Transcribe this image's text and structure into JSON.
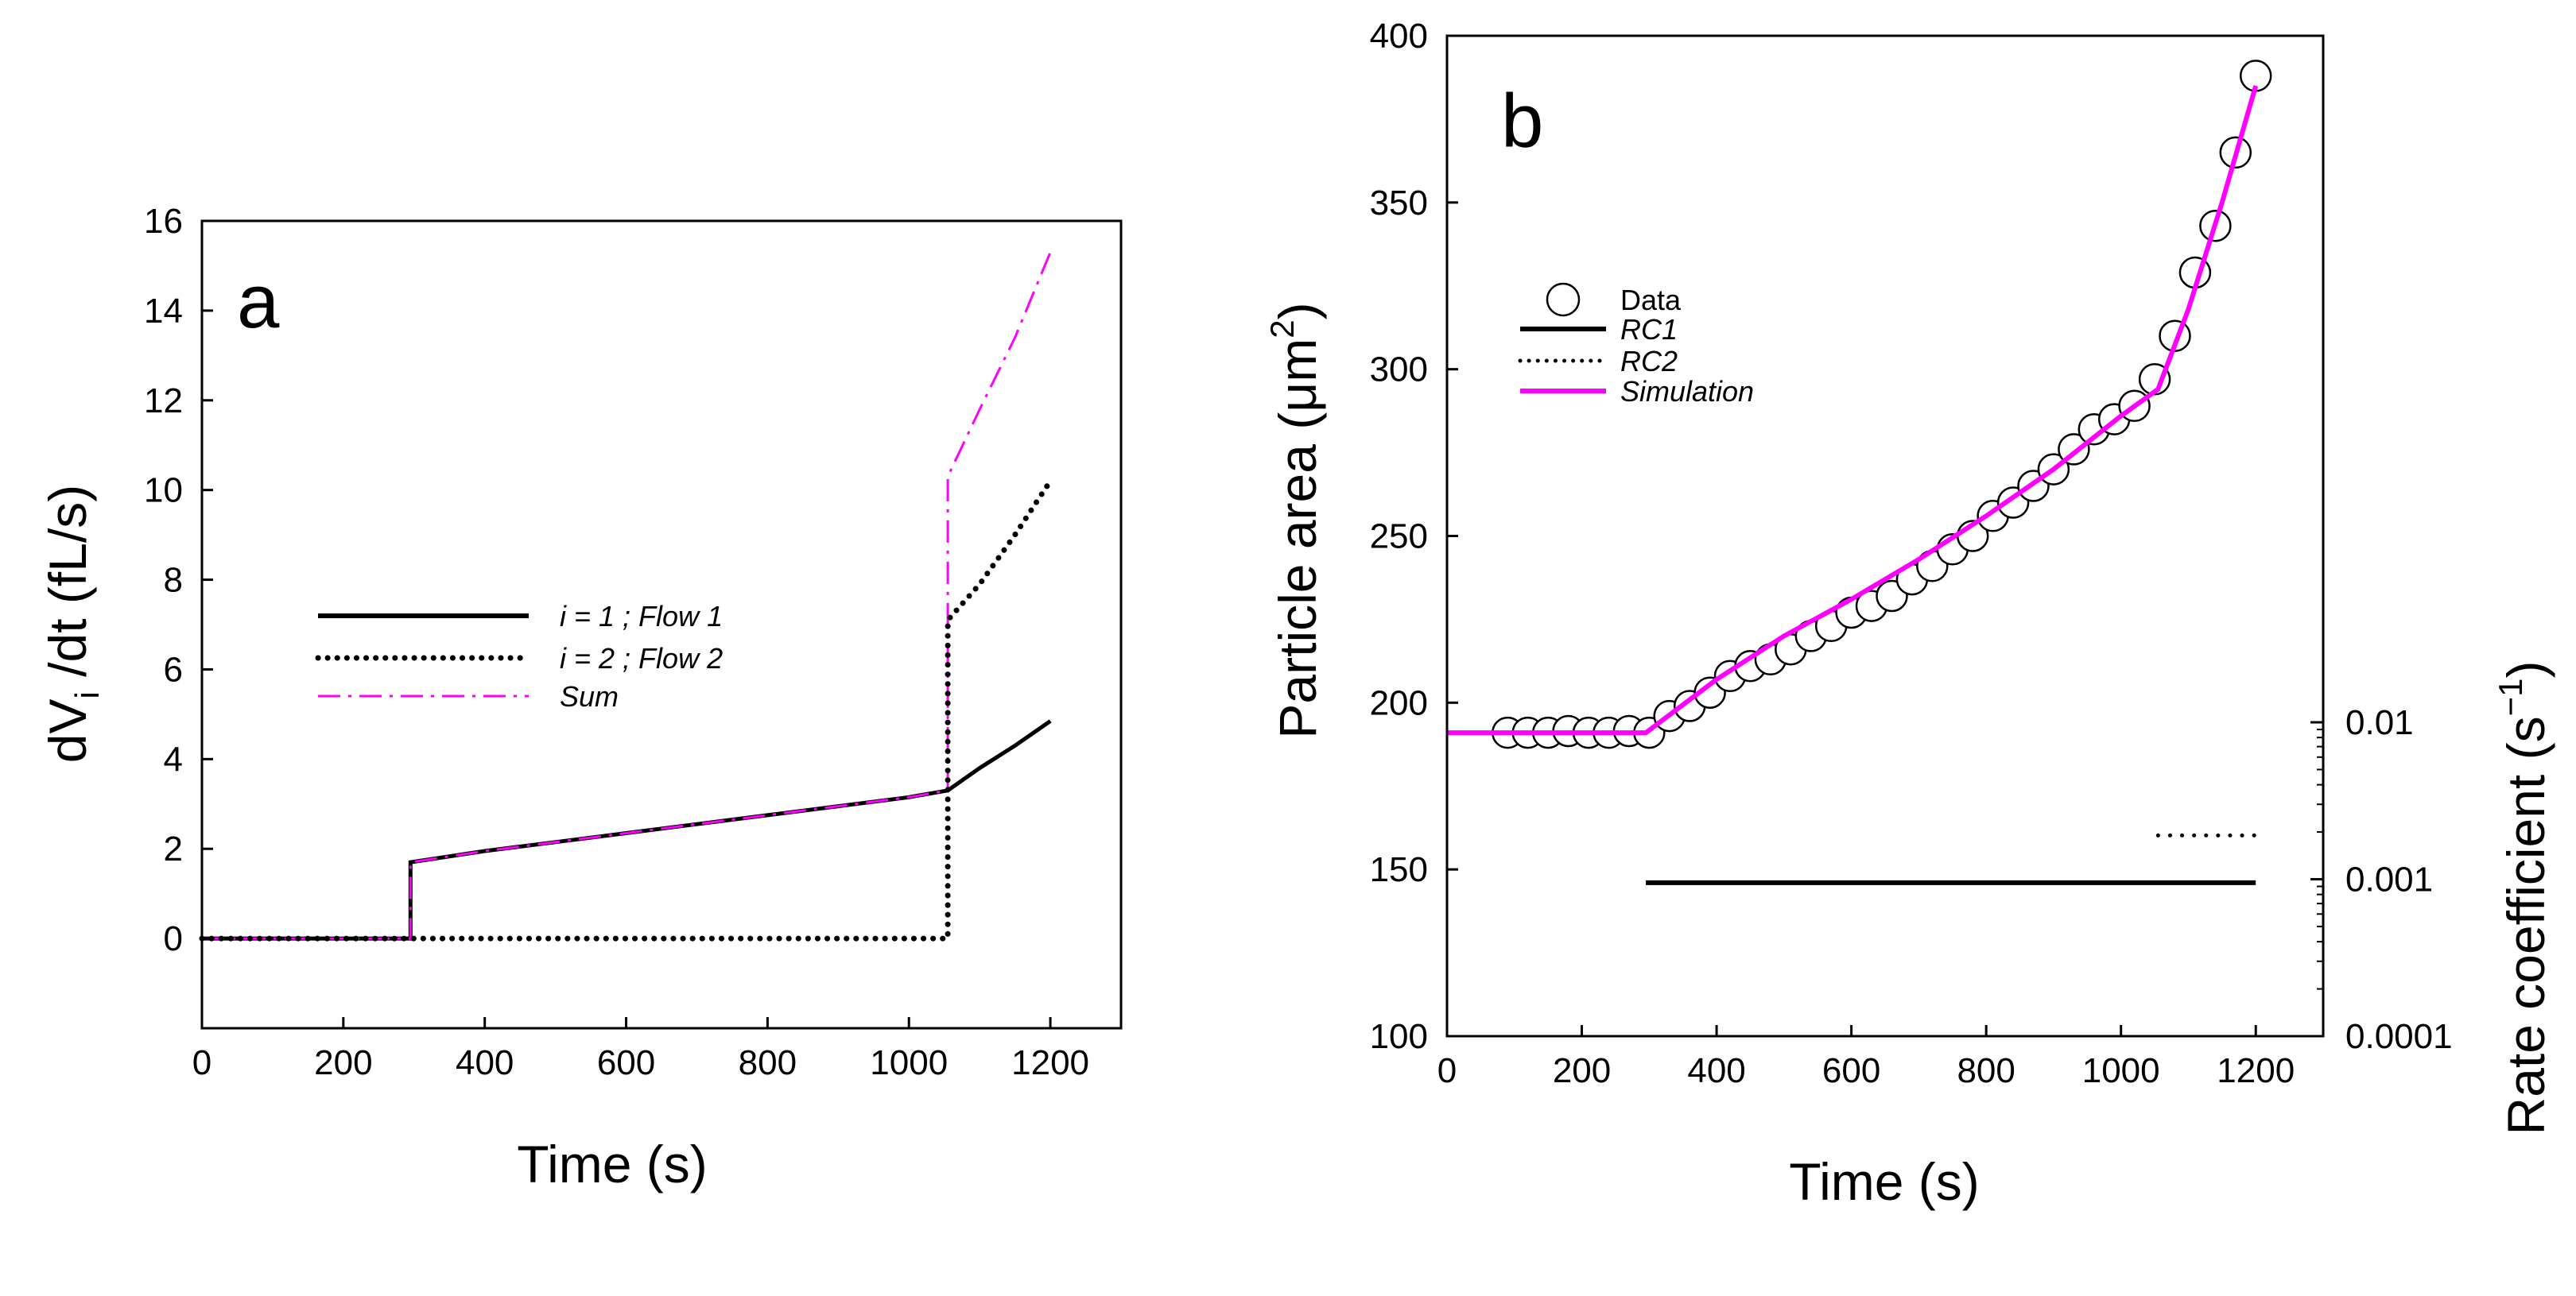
{
  "chart_data": [
    {
      "panel": "a",
      "type": "line",
      "xlabel": "Time (s)",
      "ylabel": {
        "base": "dV",
        "sub": "i",
        "rest": " /dt (fL/s)"
      },
      "xlim": [
        0,
        1300
      ],
      "ylim": [
        -2,
        16
      ],
      "xticks": [
        0,
        200,
        400,
        600,
        800,
        1000,
        1200
      ],
      "yticks": [
        0,
        2,
        4,
        6,
        8,
        10,
        12,
        14,
        16
      ],
      "series": [
        {
          "name": "i = 1 ; Flow 1",
          "color": "#000000",
          "style": "solid",
          "x": [
            0,
            295,
            295,
            400,
            500,
            600,
            700,
            800,
            900,
            1000,
            1055,
            1100,
            1150,
            1200
          ],
          "y": [
            0,
            0,
            1.7,
            1.95,
            2.15,
            2.35,
            2.55,
            2.75,
            2.95,
            3.15,
            3.3,
            3.8,
            4.3,
            4.85
          ]
        },
        {
          "name": "i = 2 ; Flow 2",
          "color": "#000000",
          "style": "dotted",
          "x": [
            0,
            1055,
            1055,
            1100,
            1150,
            1200
          ],
          "y": [
            0,
            0,
            7.1,
            7.9,
            9.0,
            10.2
          ]
        },
        {
          "name": "Sum",
          "color": "#ff00ff",
          "style": "dashdot",
          "x": [
            0,
            295,
            295,
            400,
            500,
            600,
            700,
            800,
            900,
            1000,
            1055,
            1055,
            1100,
            1150,
            1200
          ],
          "y": [
            0,
            0,
            1.7,
            1.95,
            2.15,
            2.35,
            2.55,
            2.75,
            2.95,
            3.15,
            3.3,
            10.3,
            11.8,
            13.4,
            15.3
          ]
        }
      ]
    },
    {
      "panel": "b",
      "type": "scatter+line",
      "xlabel": "Time (s)",
      "ylabel": {
        "base": "Particle area (",
        "unit": "μm",
        "sup": "2",
        "rest": ")"
      },
      "y2label": {
        "base": "Rate coefficient (s",
        "sup": "−1",
        "rest": ")"
      },
      "xlim": [
        0,
        1300
      ],
      "ylim": [
        100,
        400
      ],
      "y2lim_log": [
        0.0001,
        0.01
      ],
      "xticks": [
        0,
        200,
        400,
        600,
        800,
        1000,
        1200
      ],
      "yticks": [
        100,
        150,
        200,
        250,
        300,
        350,
        400
      ],
      "y2ticks": [
        "0.0001",
        "0.001",
        "0.01"
      ],
      "y2tick_values": [
        0.0001,
        0.001,
        0.01
      ],
      "series": [
        {
          "name": "Data",
          "marker": "open-circle",
          "x": [
            90,
            120,
            150,
            180,
            210,
            240,
            270,
            300,
            330,
            360,
            390,
            420,
            450,
            480,
            510,
            540,
            570,
            600,
            630,
            660,
            690,
            720,
            750,
            780,
            810,
            840,
            870,
            900,
            930,
            960,
            990,
            1020,
            1050,
            1080,
            1110,
            1140,
            1170,
            1200
          ],
          "y": [
            191,
            191,
            191,
            191.5,
            191,
            191,
            191.5,
            191,
            196,
            199,
            203,
            208,
            211,
            213,
            216,
            220,
            223,
            227,
            229,
            232,
            237,
            241,
            246,
            250,
            256,
            260,
            265,
            270,
            276,
            282,
            285,
            289,
            297,
            310,
            329,
            343,
            365,
            388
          ]
        },
        {
          "name": "RC1",
          "axis": "right",
          "color": "#000000",
          "style": "solid",
          "x": [
            295,
            1200
          ],
          "y": [
            0.00095,
            0.00095
          ]
        },
        {
          "name": "RC2",
          "axis": "right",
          "color": "#000000",
          "style": "dotted",
          "x": [
            1055,
            1200
          ],
          "y": [
            0.0019,
            0.0019
          ]
        },
        {
          "name": "Simulation",
          "color": "#ff00ff",
          "style": "solid",
          "x": [
            0,
            295,
            400,
            500,
            600,
            700,
            800,
            900,
            1000,
            1055,
            1100,
            1150,
            1200
          ],
          "y": [
            191,
            191,
            207,
            220,
            231,
            243,
            256,
            270,
            286,
            294,
            318,
            350,
            385
          ]
        }
      ]
    }
  ]
}
